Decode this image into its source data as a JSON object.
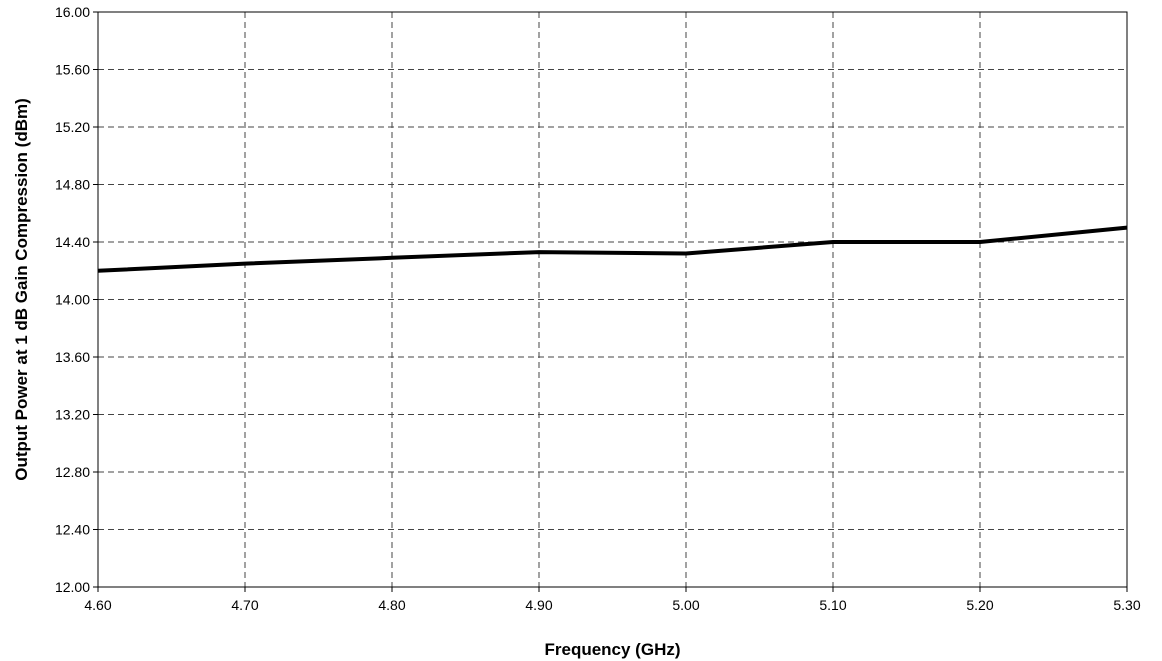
{
  "chart_data": {
    "type": "line",
    "title": "",
    "xlabel": "Frequency (GHz)",
    "ylabel": "Output Power at 1 dB Gain Compression (dBm)",
    "xlim": [
      4.6,
      5.3
    ],
    "ylim": [
      12.0,
      16.0
    ],
    "x_ticks": [
      "4.60",
      "4.70",
      "4.80",
      "4.90",
      "5.00",
      "5.10",
      "5.20",
      "5.30"
    ],
    "y_ticks": [
      "12.00",
      "12.40",
      "12.80",
      "13.20",
      "13.60",
      "14.00",
      "14.40",
      "14.80",
      "15.20",
      "15.60",
      "16.00"
    ],
    "grid": true,
    "grid_style": "dashed",
    "series": [
      {
        "x": [
          4.6,
          4.7,
          4.8,
          4.9,
          5.0,
          5.1,
          5.2,
          5.3
        ],
        "values": [
          14.2,
          14.25,
          14.29,
          14.33,
          14.32,
          14.4,
          14.4,
          14.5
        ],
        "color": "#000000"
      }
    ],
    "colors": {
      "line": "#000000",
      "grid": "#444444",
      "frame": "#000000",
      "background": "#ffffff"
    }
  }
}
